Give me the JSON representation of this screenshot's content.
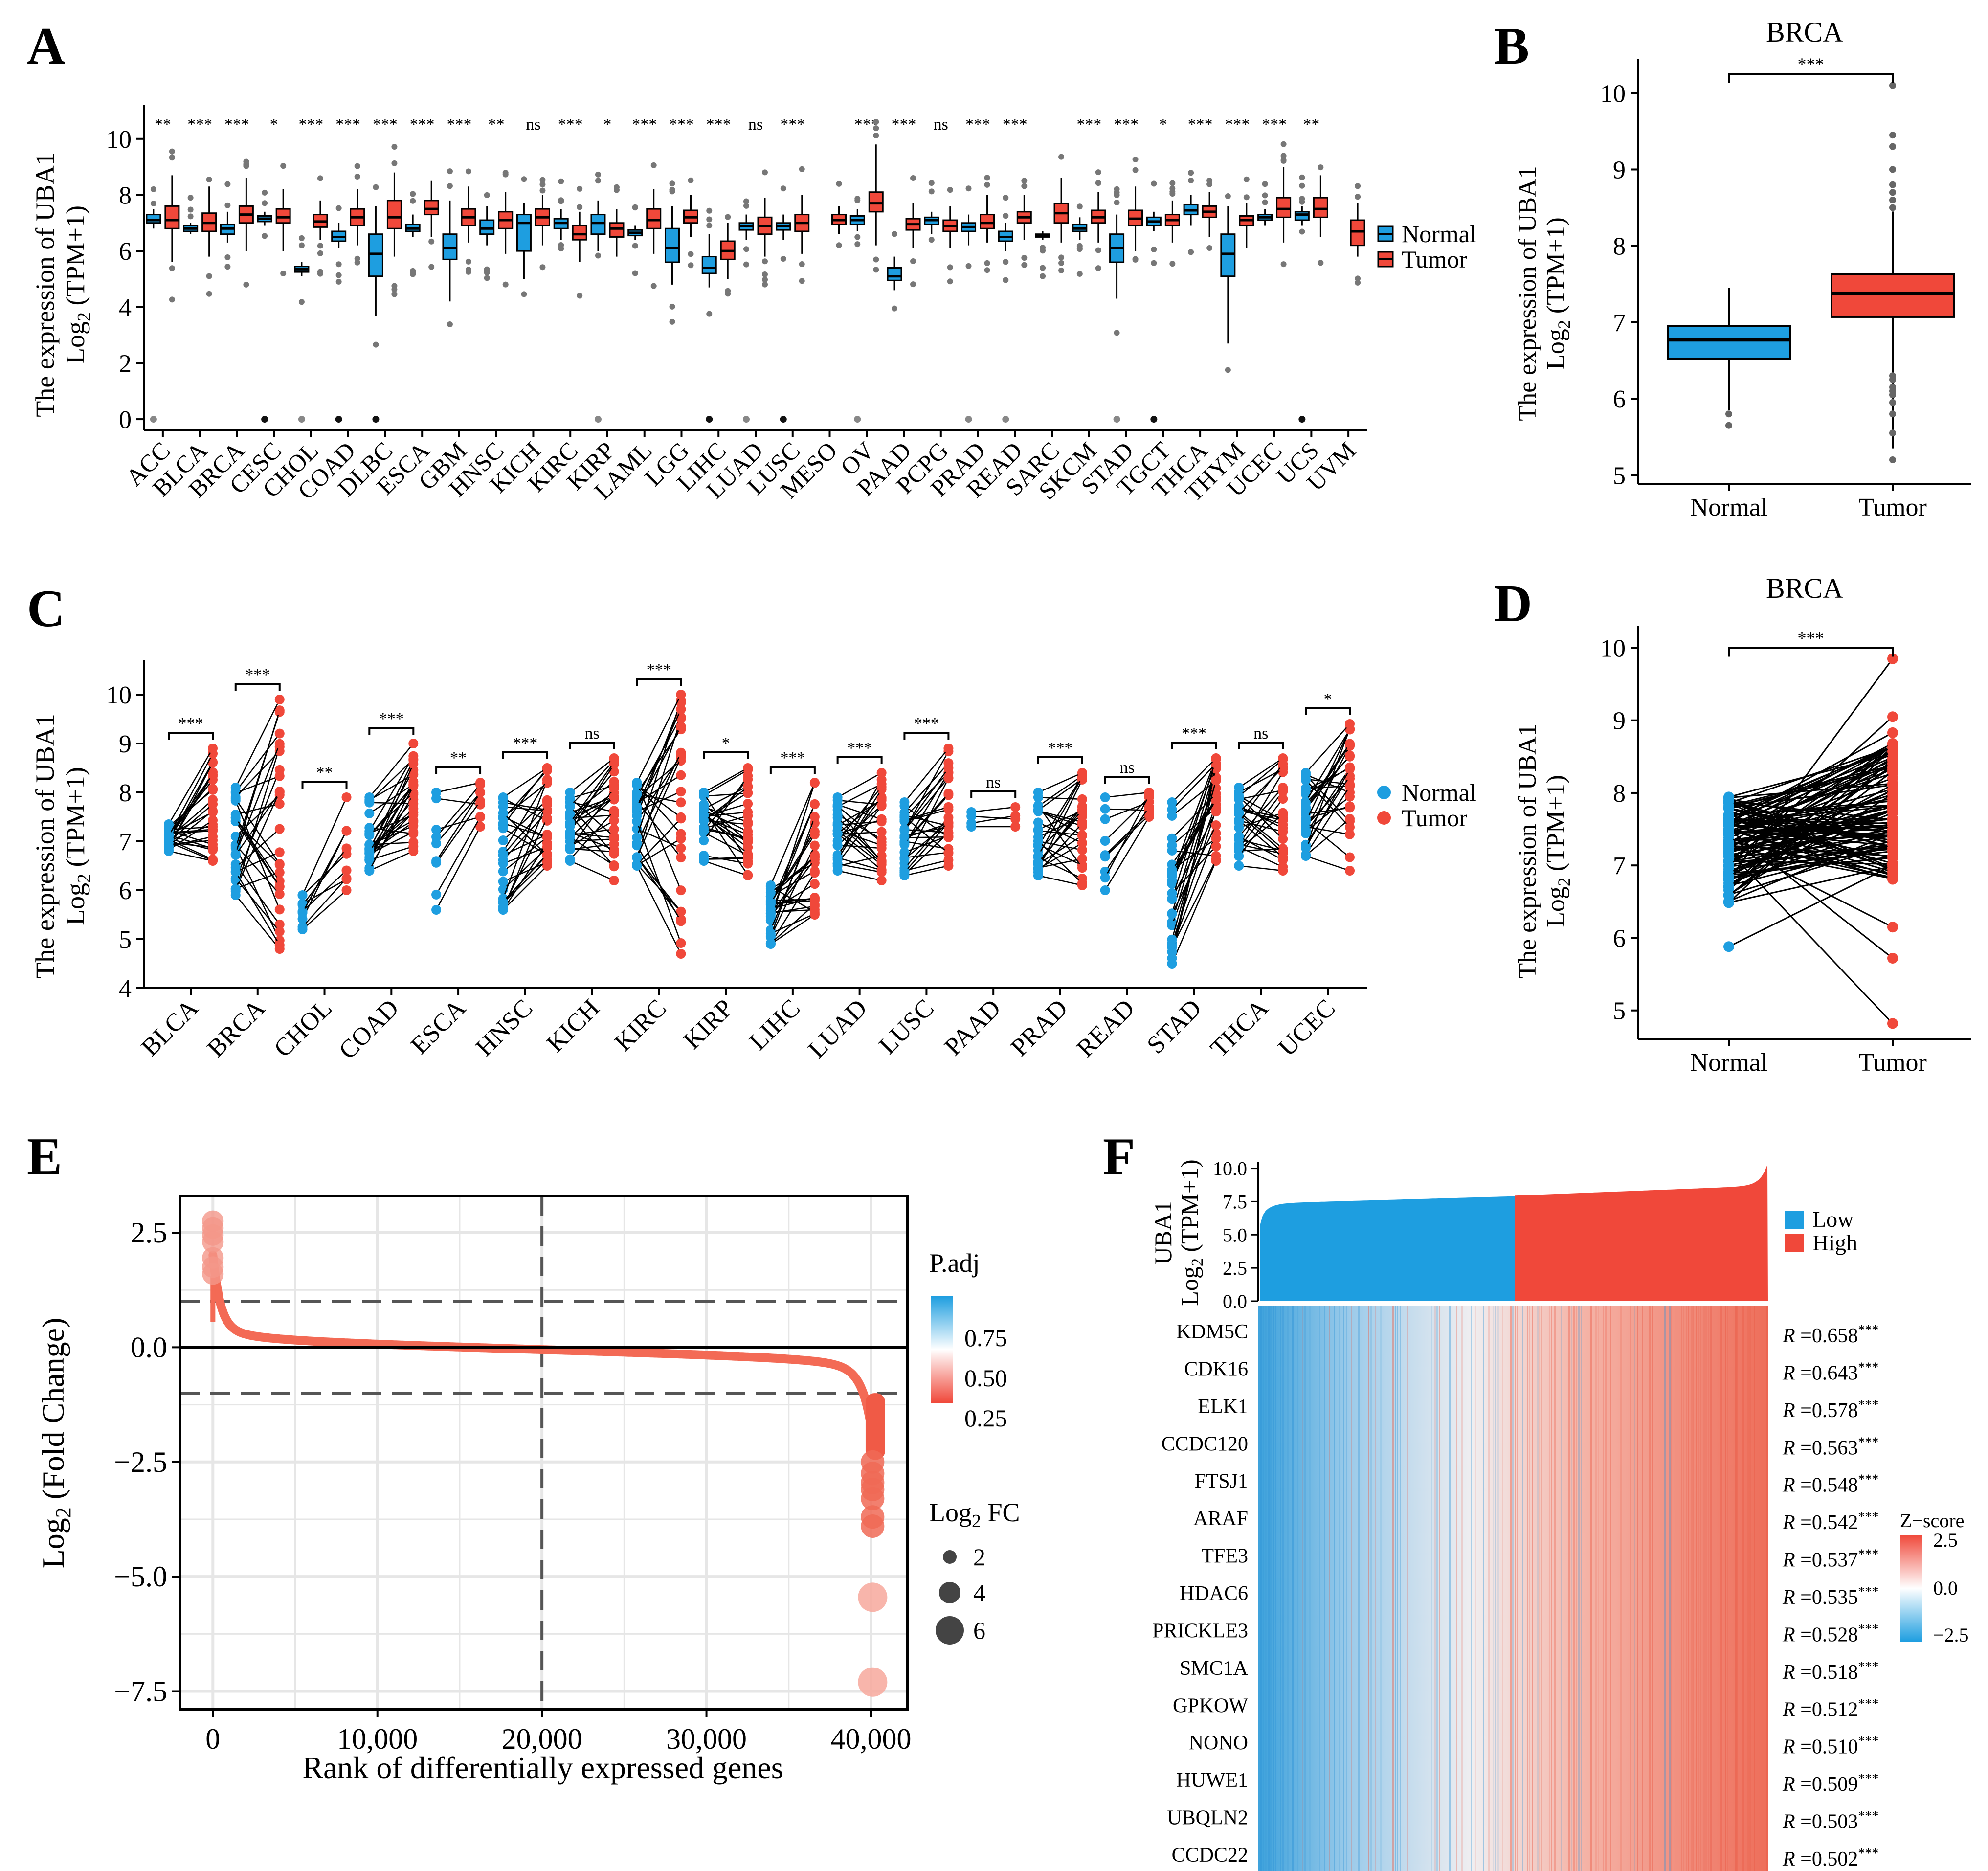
{
  "colors": {
    "normal": "#1E9EE0",
    "tumor": "#F0483A",
    "low": "#1E9EE0",
    "high": "#F0483A",
    "axis": "#000000",
    "grid": "#e6e6e6"
  },
  "panel_labels": {
    "a": "A",
    "b": "B",
    "c": "C",
    "d": "D",
    "e": "E",
    "f": "F"
  },
  "common": {
    "ylabel_line1": "The  expression   of UBA1",
    "ylabel_line2_pre": "Log",
    "ylabel_line2_sub": "2",
    "ylabel_line2_post": " (TPM+1)",
    "legend_normal": "Normal",
    "legend_tumor": "Tumor"
  },
  "chart_data": [
    {
      "id": "A",
      "type": "box",
      "categories": [
        "ACC",
        "BLCA",
        "BRCA",
        "CESC",
        "CHOL",
        "COAD",
        "DLBC",
        "ESCA",
        "GBM",
        "HNSC",
        "KICH",
        "KIRC",
        "KIRP",
        "LAML",
        "LGG",
        "LIHC",
        "LUAD",
        "LUSC",
        "MESO",
        "OV",
        "PAAD",
        "PCPG",
        "PRAD",
        "READ",
        "SARC",
        "SKCM",
        "STAD",
        "TGCT",
        "THCA",
        "THYM",
        "UCEC",
        "UCS",
        "UVM"
      ],
      "significance": [
        "**",
        "***",
        "***",
        "*",
        "***",
        "***",
        "***",
        "***",
        "***",
        "**",
        "ns",
        "***",
        "*",
        "***",
        "***",
        "***",
        "ns",
        "***",
        "",
        "***",
        "***",
        "ns",
        "***",
        "***",
        "",
        "***",
        "***",
        "*",
        "***",
        "***",
        "***",
        "**",
        ""
      ],
      "normal": [
        [
          6.8,
          7.0,
          7.1,
          7.3,
          7.5
        ],
        [
          6.6,
          6.7,
          6.8,
          6.9,
          7.0
        ],
        [
          6.3,
          6.6,
          6.8,
          6.95,
          7.4
        ],
        [
          6.9,
          7.05,
          7.15,
          7.25,
          7.4
        ],
        [
          5.1,
          5.25,
          5.35,
          5.45,
          5.6
        ],
        [
          6.1,
          6.35,
          6.5,
          6.7,
          7.0
        ],
        [
          3.7,
          5.1,
          5.9,
          6.6,
          7.6
        ],
        [
          6.5,
          6.7,
          6.8,
          6.95,
          7.3
        ],
        [
          4.2,
          5.7,
          6.1,
          6.6,
          7.8
        ],
        [
          6.2,
          6.6,
          6.8,
          7.1,
          7.6
        ],
        [
          5.0,
          6.0,
          7.0,
          7.3,
          7.7
        ],
        [
          6.4,
          6.8,
          7.0,
          7.15,
          7.5
        ],
        [
          6.0,
          6.6,
          7.0,
          7.3,
          7.8
        ],
        [
          6.4,
          6.55,
          6.65,
          6.75,
          6.9
        ],
        [
          4.8,
          5.6,
          6.1,
          6.8,
          7.6
        ],
        [
          4.7,
          5.2,
          5.4,
          5.8,
          6.6
        ],
        [
          6.4,
          6.75,
          6.9,
          7.0,
          7.3
        ],
        [
          6.4,
          6.75,
          6.9,
          7.0,
          7.3
        ],
        null,
        [
          6.7,
          6.95,
          7.1,
          7.25,
          7.5
        ],
        [
          4.6,
          4.95,
          5.1,
          5.4,
          5.8
        ],
        [
          6.6,
          6.95,
          7.1,
          7.2,
          7.4
        ],
        [
          6.2,
          6.7,
          6.85,
          7.0,
          7.3
        ],
        [
          6.0,
          6.35,
          6.5,
          6.7,
          7.0
        ],
        [
          6.4,
          6.5,
          6.55,
          6.6,
          6.7
        ],
        [
          6.4,
          6.7,
          6.8,
          6.95,
          7.2
        ],
        [
          4.3,
          5.6,
          6.1,
          6.6,
          7.3
        ],
        [
          6.7,
          6.9,
          7.05,
          7.2,
          7.4
        ],
        [
          6.9,
          7.3,
          7.45,
          7.65,
          8.0
        ],
        [
          2.7,
          5.1,
          5.9,
          6.6,
          7.6
        ],
        [
          6.9,
          7.1,
          7.2,
          7.3,
          7.5
        ],
        [
          6.9,
          7.1,
          7.3,
          7.4,
          7.6
        ],
        null
      ],
      "tumor": [
        [
          5.6,
          6.8,
          7.1,
          7.6,
          8.7
        ],
        [
          5.8,
          6.7,
          7.0,
          7.35,
          8.3
        ],
        [
          6.0,
          7.0,
          7.3,
          7.6,
          8.6
        ],
        [
          6.0,
          7.0,
          7.2,
          7.5,
          8.2
        ],
        [
          6.4,
          6.85,
          7.05,
          7.3,
          7.8
        ],
        [
          6.2,
          6.9,
          7.2,
          7.5,
          8.2
        ],
        [
          5.8,
          6.8,
          7.2,
          7.8,
          8.8
        ],
        [
          6.5,
          7.3,
          7.5,
          7.8,
          8.5
        ],
        [
          6.3,
          6.9,
          7.2,
          7.5,
          8.3
        ],
        [
          5.9,
          6.8,
          7.1,
          7.4,
          8.1
        ],
        [
          6.2,
          6.9,
          7.2,
          7.5,
          8.0
        ],
        [
          5.6,
          6.4,
          6.6,
          6.9,
          7.4
        ],
        [
          5.8,
          6.5,
          6.8,
          7.0,
          7.5
        ],
        [
          5.9,
          6.8,
          7.1,
          7.5,
          8.2
        ],
        [
          6.5,
          7.0,
          7.2,
          7.45,
          8.0
        ],
        [
          5.0,
          5.7,
          6.0,
          6.35,
          7.0
        ],
        [
          5.8,
          6.6,
          6.9,
          7.2,
          7.9
        ],
        [
          5.9,
          6.7,
          7.0,
          7.3,
          8.0
        ],
        [
          6.6,
          6.95,
          7.1,
          7.3,
          7.6
        ],
        [
          6.2,
          7.4,
          7.7,
          8.1,
          9.8
        ],
        [
          6.1,
          6.75,
          6.95,
          7.15,
          7.7
        ],
        [
          6.1,
          6.7,
          6.9,
          7.1,
          7.6
        ],
        [
          6.3,
          6.8,
          7.0,
          7.3,
          8.0
        ],
        [
          6.4,
          7.0,
          7.2,
          7.4,
          8.0
        ],
        [
          6.3,
          7.0,
          7.35,
          7.7,
          8.6
        ],
        [
          6.3,
          7.0,
          7.2,
          7.45,
          8.1
        ],
        [
          6.0,
          6.9,
          7.15,
          7.45,
          8.3
        ],
        [
          6.3,
          6.9,
          7.1,
          7.3,
          7.8
        ],
        [
          6.5,
          7.2,
          7.4,
          7.6,
          8.1
        ],
        [
          6.1,
          6.9,
          7.1,
          7.25,
          7.7
        ],
        [
          6.3,
          7.2,
          7.5,
          7.9,
          9.0
        ],
        [
          6.5,
          7.2,
          7.5,
          7.9,
          8.7
        ],
        [
          5.8,
          6.2,
          6.7,
          7.1,
          7.7
        ]
      ],
      "yticks": [
        0,
        2,
        4,
        6,
        8,
        10
      ],
      "ylim": [
        -0.4,
        11.2
      ]
    },
    {
      "id": "B",
      "type": "box",
      "title": "BRCA",
      "categories": [
        "Normal",
        "Tumor"
      ],
      "boxes": [
        [
          5.85,
          6.52,
          6.77,
          6.95,
          7.45
        ],
        [
          5.35,
          7.07,
          7.38,
          7.63,
          8.45
        ]
      ],
      "outliers": [
        [
          5.8,
          5.65
        ],
        [
          5.2,
          5.55,
          5.8,
          5.95,
          6.05,
          6.1,
          6.15,
          6.25,
          6.3,
          8.5,
          8.6,
          8.7,
          8.8,
          9.0,
          9.3,
          9.45,
          10.1
        ]
      ],
      "significance": "***",
      "yticks": [
        5,
        6,
        7,
        8,
        9,
        10
      ],
      "ylim": [
        4.88,
        10.45
      ]
    },
    {
      "id": "C",
      "type": "paired-dot",
      "categories": [
        "BLCA",
        "BRCA",
        "CHOL",
        "COAD",
        "ESCA",
        "HNSC",
        "KICH",
        "KIRC",
        "KIRP",
        "LIHC",
        "LUAD",
        "LUSC",
        "PAAD",
        "PRAD",
        "READ",
        "STAD",
        "THCA",
        "UCEC"
      ],
      "significance": [
        "***",
        "***",
        "**",
        "***",
        "**",
        "***",
        "ns",
        "***",
        "*",
        "***",
        "***",
        "***",
        "ns",
        "***",
        "ns",
        "***",
        "ns",
        "*"
      ],
      "normal": [
        [
          6.8,
          7.35
        ],
        [
          5.9,
          8.1
        ],
        [
          5.2,
          5.9
        ],
        [
          6.4,
          7.9
        ],
        [
          5.6,
          8.0
        ],
        [
          5.6,
          7.9
        ],
        [
          6.6,
          8.0
        ],
        [
          6.5,
          8.2
        ],
        [
          6.6,
          8.0
        ],
        [
          4.9,
          6.1
        ],
        [
          6.4,
          7.9
        ],
        [
          6.3,
          7.8
        ],
        [
          7.3,
          7.6
        ],
        [
          6.3,
          8.0
        ],
        [
          6.0,
          7.9
        ],
        [
          4.5,
          7.8
        ],
        [
          6.5,
          8.1
        ],
        [
          6.7,
          8.4
        ]
      ],
      "tumor": [
        [
          6.6,
          8.9
        ],
        [
          4.8,
          9.9
        ],
        [
          6.0,
          7.9
        ],
        [
          6.8,
          9.0
        ],
        [
          7.3,
          8.2
        ],
        [
          6.5,
          8.5
        ],
        [
          6.2,
          8.7
        ],
        [
          4.7,
          10.0
        ],
        [
          6.3,
          8.5
        ],
        [
          5.5,
          8.2
        ],
        [
          6.2,
          8.4
        ],
        [
          6.5,
          8.9
        ],
        [
          7.3,
          7.7
        ],
        [
          6.1,
          8.4
        ],
        [
          7.5,
          8.0
        ],
        [
          6.6,
          8.7
        ],
        [
          6.4,
          8.7
        ],
        [
          6.4,
          9.4
        ]
      ],
      "yticks": [
        4,
        5,
        6,
        7,
        8,
        9,
        10
      ],
      "ylim": [
        4.0,
        10.7
      ]
    },
    {
      "id": "D",
      "type": "paired-dot",
      "title": "BRCA",
      "categories": [
        "Normal",
        "Tumor"
      ],
      "normal_range": [
        5.88,
        7.95
      ],
      "tumor_range": [
        4.82,
        9.85
      ],
      "significance": "***",
      "yticks": [
        5,
        6,
        7,
        8,
        9,
        10
      ],
      "ylim": [
        4.6,
        10.3
      ]
    },
    {
      "id": "E",
      "type": "scatter",
      "xlabel": "Rank of differentially expressed genes",
      "ylabel_pre": "Log",
      "ylabel_sub": "2",
      "ylabel_post": " (Fold Change)",
      "xticks": [
        0,
        10000,
        20000,
        30000,
        40000
      ],
      "xtick_labels": [
        "0",
        "10,000",
        "20,000",
        "30,000",
        "40,000"
      ],
      "yticks": [
        -7.5,
        -5.0,
        -2.5,
        0.0,
        2.5
      ],
      "ytick_labels": [
        "−7.5",
        "−5.0",
        "−2.5",
        "0.0",
        "2.5"
      ],
      "xlim": [
        -2000,
        42200
      ],
      "ylim": [
        -7.9,
        3.3
      ],
      "hlines_dashed": [
        1,
        -1
      ],
      "hline_solid": 0,
      "vline_dashed": 20000,
      "n_genes": 40000,
      "top_points": [
        2.75,
        2.6,
        2.45,
        2.3,
        1.95,
        1.75,
        1.6
      ],
      "bottom_points": [
        -2.5,
        -2.75,
        -2.95,
        -3.1,
        -3.3,
        -3.7,
        -3.9,
        -5.45,
        -7.3
      ],
      "legend_padj_title": "P.adj",
      "legend_padj_labels": [
        "0.75",
        "0.50",
        "0.25"
      ],
      "legend_fc_title_pre": "Log",
      "legend_fc_title_sub": "2",
      "legend_fc_title_post": " FC",
      "legend_fc_labels": [
        "2",
        "4",
        "6"
      ]
    },
    {
      "id": "F",
      "type": "heatmap",
      "bar_ylabel_line1": "UBA1",
      "bar_ylabel_line2_pre": "Log",
      "bar_ylabel_line2_sub": "2",
      "bar_ylabel_line2_post": " (TPM+1)",
      "bar_yticks": [
        "0.0",
        "2.5",
        "5.0",
        "7.5",
        "10.0"
      ],
      "bar_ylim": [
        0,
        10.5
      ],
      "low_range": [
        4.8,
        7.9
      ],
      "high_range": [
        7.9,
        10.4
      ],
      "legend_low": "Low",
      "legend_high": "High",
      "genes": [
        "KDM5C",
        "CDK16",
        "ELK1",
        "CCDC120",
        "FTSJ1",
        "ARAF",
        "TFE3",
        "HDAC6",
        "PRICKLE3",
        "SMC1A",
        "GPKOW",
        "NONO",
        "HUWE1",
        "UBQLN2",
        "CCDC22"
      ],
      "r_values": [
        "0.658",
        "0.643",
        "0.578",
        "0.563",
        "0.548",
        "0.542",
        "0.537",
        "0.535",
        "0.528",
        "0.518",
        "0.512",
        "0.510",
        "0.509",
        "0.503",
        "0.502"
      ],
      "r_label": "R",
      "r_sig": "***",
      "zscore_title": "Z−score",
      "zscore_labels": [
        "2.5",
        "0.0",
        "−2.5"
      ]
    }
  ]
}
